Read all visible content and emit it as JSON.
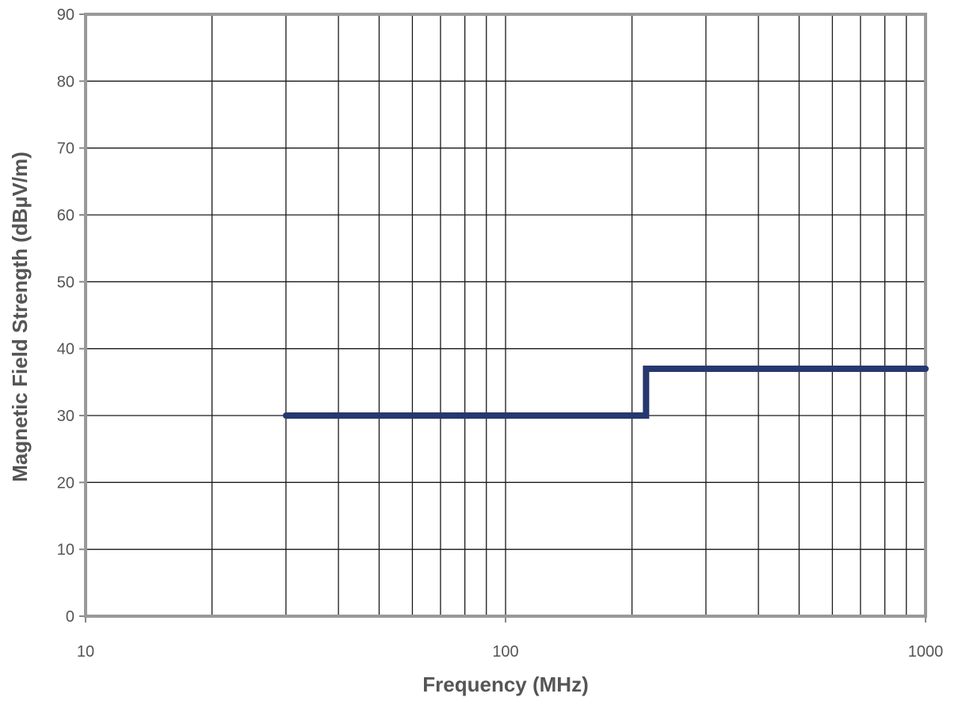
{
  "chart_data": {
    "type": "line",
    "xlabel": "Frequency (MHz)",
    "ylabel": "Magnetic Field Strength (dBµV/m)",
    "x_scale": "log",
    "xlim": [
      10,
      1000
    ],
    "ylim": [
      0,
      90
    ],
    "x_ticks": [
      "10",
      "100",
      "1000"
    ],
    "y_ticks": [
      "0",
      "10",
      "20",
      "30",
      "40",
      "50",
      "60",
      "70",
      "80",
      "90"
    ],
    "grid": true,
    "legend": "none",
    "series": [
      {
        "color": "#27386f",
        "points": [
          {
            "x": 30,
            "y": 30
          },
          {
            "x": 216,
            "y": 30
          },
          {
            "x": 216,
            "y": 37
          },
          {
            "x": 1000,
            "y": 37
          }
        ]
      }
    ]
  }
}
